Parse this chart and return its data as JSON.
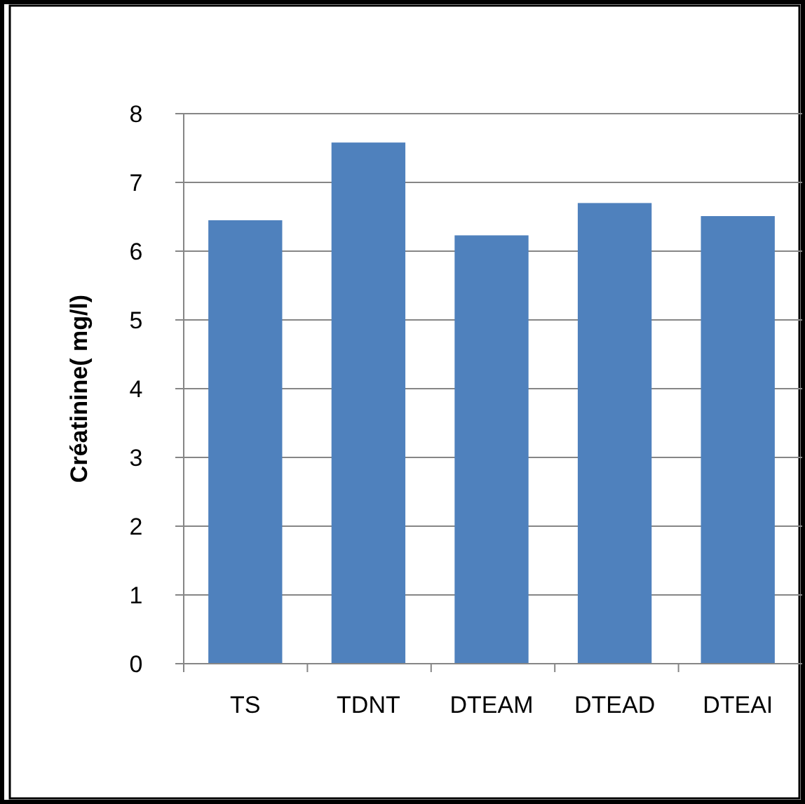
{
  "chart_data": {
    "type": "bar",
    "ylabel": "Créatinine( mg/l)",
    "categories": [
      "TS",
      "TDNT",
      "DTEAM",
      "DTEAD",
      "DTEAI"
    ],
    "values": [
      6.45,
      7.58,
      6.23,
      6.7,
      6.51
    ],
    "color": "#4f81bd",
    "ylim": [
      0,
      8
    ],
    "yticks": [
      0,
      1,
      2,
      3,
      4,
      5,
      6,
      7,
      8
    ],
    "grid": "y"
  }
}
